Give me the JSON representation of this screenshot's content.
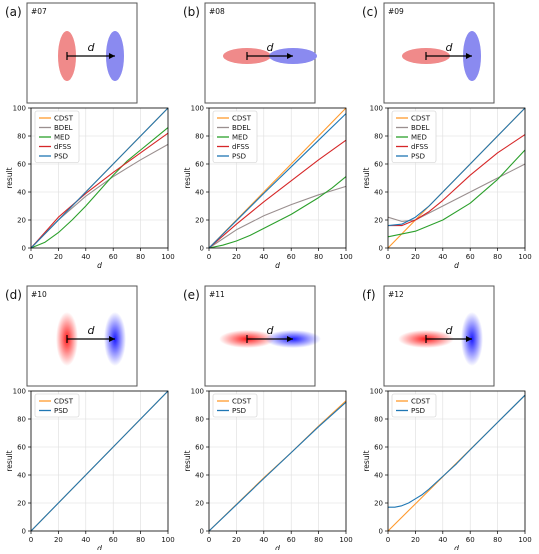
{
  "colors": {
    "CDST": "#ff9a2e",
    "BDEL": "#9a8f8f",
    "MED": "#2ca02c",
    "dFSS": "#d62728",
    "PSD": "#1f77b4",
    "red_shape": "#f08a8a",
    "blue_shape": "#8a8af0",
    "grid": "#dddddd"
  },
  "chart_data": [
    {
      "panel": "(a)",
      "id": "#07",
      "type": "line",
      "xlabel": "d",
      "ylabel": "result",
      "xlim": [
        0,
        100
      ],
      "ylim": [
        0,
        100
      ],
      "xticks": [
        "0",
        "20",
        "40",
        "60",
        "80",
        "100"
      ],
      "yticks": [
        "0",
        "20",
        "40",
        "60",
        "80",
        "100"
      ],
      "grid": true,
      "legend_position": "top-left",
      "inset": {
        "label": "d",
        "shapes": [
          {
            "color": "red",
            "style": "solid",
            "orientation": "vertical"
          },
          {
            "color": "blue",
            "style": "solid",
            "orientation": "vertical"
          }
        ]
      },
      "series": [
        {
          "name": "CDST",
          "x": [
            0,
            20,
            40,
            60,
            80,
            100
          ],
          "y": [
            0,
            20,
            40,
            60,
            80,
            100
          ]
        },
        {
          "name": "BDEL",
          "x": [
            0,
            20,
            40,
            60,
            80,
            100
          ],
          "y": [
            0,
            20,
            37,
            51,
            63,
            74
          ]
        },
        {
          "name": "MED",
          "x": [
            0,
            10,
            20,
            30,
            40,
            50,
            60,
            70,
            80,
            90,
            100
          ],
          "y": [
            0,
            4,
            11,
            20,
            30,
            41,
            52,
            62,
            70,
            78,
            86
          ]
        },
        {
          "name": "dFSS",
          "x": [
            0,
            20,
            40,
            60,
            80,
            100
          ],
          "y": [
            0,
            22,
            39,
            54,
            68,
            82
          ]
        },
        {
          "name": "PSD",
          "x": [
            0,
            20,
            40,
            60,
            80,
            100
          ],
          "y": [
            0,
            20,
            40,
            60,
            80,
            100
          ]
        }
      ]
    },
    {
      "panel": "(b)",
      "id": "#08",
      "type": "line",
      "xlabel": "d",
      "ylabel": "result",
      "xlim": [
        0,
        100
      ],
      "ylim": [
        0,
        100
      ],
      "xticks": [
        "0",
        "20",
        "40",
        "60",
        "80",
        "100"
      ],
      "yticks": [
        "0",
        "20",
        "40",
        "60",
        "80",
        "100"
      ],
      "grid": true,
      "legend_position": "top-left",
      "inset": {
        "label": "d",
        "shapes": [
          {
            "color": "red",
            "style": "solid",
            "orientation": "horizontal"
          },
          {
            "color": "blue",
            "style": "solid",
            "orientation": "horizontal"
          }
        ]
      },
      "series": [
        {
          "name": "CDST",
          "x": [
            0,
            20,
            40,
            60,
            80,
            100
          ],
          "y": [
            0,
            20,
            40,
            60,
            80,
            100
          ]
        },
        {
          "name": "BDEL",
          "x": [
            0,
            20,
            40,
            60,
            80,
            100
          ],
          "y": [
            0,
            13,
            23,
            31,
            38,
            44
          ]
        },
        {
          "name": "MED",
          "x": [
            0,
            10,
            20,
            30,
            40,
            50,
            60,
            70,
            80,
            90,
            100
          ],
          "y": [
            0,
            2,
            5,
            9,
            14,
            19,
            24,
            30,
            36,
            43,
            51
          ]
        },
        {
          "name": "dFSS",
          "x": [
            0,
            20,
            40,
            60,
            80,
            100
          ],
          "y": [
            0,
            17,
            33,
            48,
            63,
            77
          ]
        },
        {
          "name": "PSD",
          "x": [
            0,
            20,
            40,
            60,
            80,
            100
          ],
          "y": [
            0,
            19.5,
            39,
            58,
            77,
            96
          ]
        }
      ]
    },
    {
      "panel": "(c)",
      "id": "#09",
      "type": "line",
      "xlabel": "d",
      "ylabel": "result",
      "xlim": [
        0,
        100
      ],
      "ylim": [
        0,
        100
      ],
      "xticks": [
        "0",
        "20",
        "40",
        "60",
        "80",
        "100"
      ],
      "yticks": [
        "0",
        "20",
        "40",
        "60",
        "80",
        "100"
      ],
      "grid": true,
      "legend_position": "top-left",
      "inset": {
        "label": "d",
        "shapes": [
          {
            "color": "red",
            "style": "solid",
            "orientation": "horizontal"
          },
          {
            "color": "blue",
            "style": "solid",
            "orientation": "vertical"
          }
        ]
      },
      "series": [
        {
          "name": "CDST",
          "x": [
            0,
            20,
            40,
            60,
            80,
            100
          ],
          "y": [
            0,
            20,
            40,
            60,
            80,
            100
          ]
        },
        {
          "name": "BDEL",
          "x": [
            0,
            10,
            20,
            30,
            40,
            60,
            80,
            100
          ],
          "y": [
            22,
            19,
            20,
            25,
            30,
            40,
            50,
            60
          ]
        },
        {
          "name": "MED",
          "x": [
            0,
            20,
            40,
            60,
            80,
            100
          ],
          "y": [
            8,
            12,
            20,
            32,
            49,
            70
          ]
        },
        {
          "name": "dFSS",
          "x": [
            0,
            10,
            20,
            30,
            40,
            60,
            80,
            100
          ],
          "y": [
            16,
            16,
            20,
            26,
            34,
            52,
            68,
            81
          ]
        },
        {
          "name": "PSD",
          "x": [
            0,
            10,
            20,
            30,
            40,
            60,
            80,
            100
          ],
          "y": [
            16,
            17,
            22,
            30,
            40,
            60,
            80,
            100
          ]
        }
      ]
    },
    {
      "panel": "(d)",
      "id": "#10",
      "type": "line",
      "xlabel": "d",
      "ylabel": "result",
      "xlim": [
        0,
        100
      ],
      "ylim": [
        0,
        100
      ],
      "xticks": [
        "0",
        "20",
        "40",
        "60",
        "80",
        "100"
      ],
      "yticks": [
        "0",
        "20",
        "40",
        "60",
        "80",
        "100"
      ],
      "grid": true,
      "legend_position": "top-left",
      "inset": {
        "label": "d",
        "shapes": [
          {
            "color": "red",
            "style": "blur",
            "orientation": "vertical"
          },
          {
            "color": "blue",
            "style": "blur",
            "orientation": "vertical"
          }
        ]
      },
      "series": [
        {
          "name": "CDST",
          "x": [
            0,
            20,
            40,
            60,
            80,
            100
          ],
          "y": [
            0,
            20,
            40,
            60,
            80,
            100
          ]
        },
        {
          "name": "PSD",
          "x": [
            0,
            20,
            40,
            60,
            80,
            100
          ],
          "y": [
            0,
            20,
            40,
            60,
            80,
            100
          ]
        }
      ]
    },
    {
      "panel": "(e)",
      "id": "#11",
      "type": "line",
      "xlabel": "d",
      "ylabel": "result",
      "xlim": [
        0,
        100
      ],
      "ylim": [
        0,
        100
      ],
      "xticks": [
        "0",
        "20",
        "40",
        "60",
        "80",
        "100"
      ],
      "yticks": [
        "0",
        "20",
        "40",
        "60",
        "80",
        "100"
      ],
      "grid": true,
      "legend_position": "top-left",
      "inset": {
        "label": "d",
        "shapes": [
          {
            "color": "red",
            "style": "blur",
            "orientation": "horizontal"
          },
          {
            "color": "blue",
            "style": "blur",
            "orientation": "horizontal"
          }
        ]
      },
      "series": [
        {
          "name": "CDST",
          "x": [
            0,
            20,
            40,
            60,
            80,
            100
          ],
          "y": [
            0,
            19,
            38,
            56,
            75,
            93
          ]
        },
        {
          "name": "PSD",
          "x": [
            0,
            20,
            40,
            60,
            80,
            100
          ],
          "y": [
            0,
            18.7,
            37.5,
            56,
            74.5,
            92
          ]
        }
      ]
    },
    {
      "panel": "(f)",
      "id": "#12",
      "type": "line",
      "xlabel": "d",
      "ylabel": "result",
      "xlim": [
        0,
        100
      ],
      "ylim": [
        0,
        100
      ],
      "xticks": [
        "0",
        "20",
        "40",
        "60",
        "80",
        "100"
      ],
      "yticks": [
        "0",
        "20",
        "40",
        "60",
        "80",
        "100"
      ],
      "grid": true,
      "legend_position": "top-left",
      "inset": {
        "label": "d",
        "shapes": [
          {
            "color": "red",
            "style": "blur",
            "orientation": "horizontal"
          },
          {
            "color": "blue",
            "style": "blur",
            "orientation": "vertical"
          }
        ]
      },
      "series": [
        {
          "name": "CDST",
          "x": [
            0,
            20,
            40,
            60,
            80,
            100
          ],
          "y": [
            0,
            19.4,
            38.8,
            58.2,
            77.6,
            97
          ]
        },
        {
          "name": "PSD",
          "x": [
            0,
            5,
            10,
            15,
            20,
            25,
            30,
            40,
            50,
            60,
            80,
            100
          ],
          "y": [
            17,
            17,
            18,
            20,
            23,
            26,
            30,
            39,
            48,
            58,
            77.6,
            97
          ]
        }
      ]
    }
  ]
}
